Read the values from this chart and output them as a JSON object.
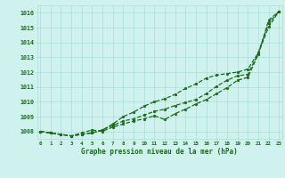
{
  "title": "Graphe pression niveau de la mer (hPa)",
  "hours": [
    0,
    1,
    2,
    3,
    4,
    5,
    6,
    7,
    8,
    9,
    10,
    11,
    12,
    13,
    14,
    15,
    16,
    17,
    18,
    19,
    20,
    21,
    22,
    23
  ],
  "ylim": [
    1007.5,
    1016.5
  ],
  "xlim": [
    -0.3,
    23.3
  ],
  "yticks": [
    1008,
    1009,
    1010,
    1011,
    1012,
    1013,
    1014,
    1015,
    1016
  ],
  "background_color": "#cff2ee",
  "grid_color": "#aaddd8",
  "line_color": "#1a6b1a",
  "line1": [
    1008.0,
    1007.9,
    1007.8,
    1007.7,
    1007.8,
    1007.9,
    1008.1,
    1008.5,
    1009.0,
    1009.3,
    1009.7,
    1010.0,
    1010.2,
    1010.5,
    1010.9,
    1011.2,
    1011.6,
    1011.8,
    1011.9,
    1012.0,
    1012.2,
    1013.3,
    1015.3,
    1016.1
  ],
  "line2": [
    1008.0,
    1007.9,
    1007.8,
    1007.7,
    1007.9,
    1008.1,
    1008.0,
    1008.3,
    1008.5,
    1008.7,
    1008.85,
    1009.05,
    1008.8,
    1009.2,
    1009.5,
    1009.85,
    1010.15,
    1010.55,
    1010.95,
    1011.45,
    1011.65,
    1013.2,
    1015.5,
    1016.1
  ],
  "line3": [
    1008.0,
    1007.9,
    1007.8,
    1007.7,
    1007.8,
    1007.9,
    1008.1,
    1008.4,
    1008.7,
    1008.85,
    1009.1,
    1009.35,
    1009.5,
    1009.75,
    1009.95,
    1010.15,
    1010.55,
    1011.05,
    1011.45,
    1011.75,
    1011.85,
    1013.25,
    1015.05,
    1016.1
  ]
}
